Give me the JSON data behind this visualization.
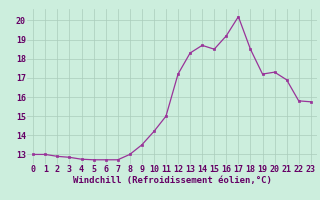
{
  "x": [
    0,
    1,
    2,
    3,
    4,
    5,
    6,
    7,
    8,
    9,
    10,
    11,
    12,
    13,
    14,
    15,
    16,
    17,
    18,
    19,
    20,
    21,
    22,
    23
  ],
  "y": [
    13.0,
    13.0,
    12.9,
    12.85,
    12.75,
    12.72,
    12.72,
    12.72,
    13.0,
    13.5,
    14.2,
    15.0,
    17.2,
    18.3,
    18.7,
    18.5,
    19.2,
    20.2,
    18.5,
    17.2,
    17.3,
    16.9,
    15.8,
    15.75
  ],
  "line_color": "#993399",
  "marker": "s",
  "markersize": 1.8,
  "linewidth": 0.9,
  "xlabel": "Windchill (Refroidissement éolien,°C)",
  "xlabel_fontsize": 6.5,
  "xlabel_color": "#660066",
  "ytick_values": [
    13,
    14,
    15,
    16,
    17,
    18,
    19,
    20
  ],
  "ylim": [
    12.5,
    20.6
  ],
  "xlim": [
    -0.5,
    23.5
  ],
  "background_color": "#cceedd",
  "grid_color": "#aaccbb",
  "tick_fontsize": 6.0,
  "tick_color": "#660066"
}
